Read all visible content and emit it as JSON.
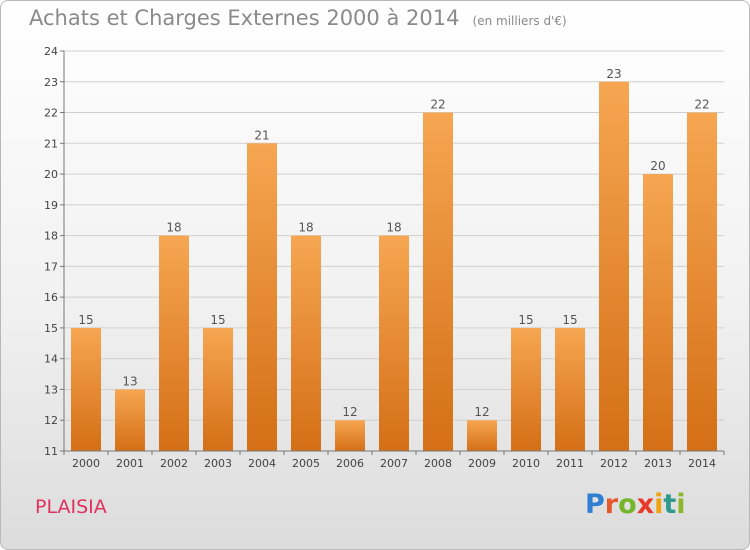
{
  "title": "Achats et Charges Externes 2000 à 2014",
  "unit": "(en milliers d'€)",
  "commune": "PLAISIA",
  "logo": {
    "letters": [
      "P",
      "r",
      "o",
      "x",
      "i",
      "t",
      "i"
    ],
    "colors": [
      "#2f7fd0",
      "#e3592b",
      "#74b52a",
      "#e83a2c",
      "#f0a20c",
      "#2f9a8c",
      "#8ab82a"
    ]
  },
  "colors": {
    "bar_top": "#f6a651",
    "bar_bottom": "#d46f16",
    "grid": "#cfcfcf",
    "axis": "#777777"
  },
  "chart_data": {
    "type": "bar",
    "categories": [
      "2000",
      "2001",
      "2002",
      "2003",
      "2004",
      "2005",
      "2006",
      "2007",
      "2008",
      "2009",
      "2010",
      "2011",
      "2012",
      "2013",
      "2014"
    ],
    "values": [
      15,
      13,
      18,
      15,
      21,
      18,
      12,
      18,
      22,
      12,
      15,
      15,
      23,
      20,
      22
    ],
    "value_labels": [
      "15",
      "13",
      "18",
      "15",
      "21",
      "18",
      "12",
      "18",
      "22",
      "12",
      "15",
      "15",
      "23",
      "20",
      "22"
    ],
    "ylim": [
      11,
      24
    ],
    "yticks": [
      "11",
      "12",
      "13",
      "14",
      "15",
      "16",
      "17",
      "18",
      "19",
      "20",
      "21",
      "22",
      "23",
      "24"
    ],
    "grid": true,
    "xlabel": "",
    "ylabel": ""
  }
}
